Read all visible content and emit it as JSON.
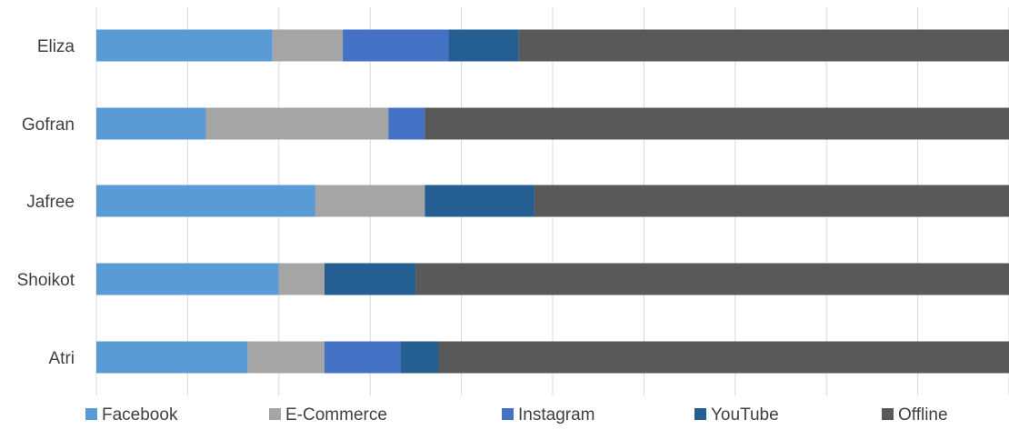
{
  "chart_data": {
    "type": "bar",
    "orientation": "horizontal",
    "stacked": "percent",
    "title": "",
    "xlabel": "",
    "ylabel": "",
    "xlim": [
      0,
      100
    ],
    "grid": true,
    "legend_position": "bottom",
    "categories": [
      "Eliza",
      "Gofran",
      "Jafree",
      "Shoikot",
      "Atri"
    ],
    "series": [
      {
        "name": "Facebook",
        "color": "#5b9bd5",
        "values": [
          19.3,
          12.0,
          24.0,
          20.0,
          16.6
        ]
      },
      {
        "name": "E-Commerce",
        "color": "#a5a5a5",
        "values": [
          7.7,
          20.0,
          12.0,
          5.0,
          8.4
        ]
      },
      {
        "name": "Instagram",
        "color": "#4472c4",
        "values": [
          11.6,
          4.0,
          0,
          0,
          8.3
        ]
      },
      {
        "name": "YouTube",
        "color": "#255e91",
        "values": [
          7.7,
          0,
          12.0,
          10.0,
          4.2
        ]
      },
      {
        "name": "Offline",
        "color": "#595959",
        "values": [
          53.7,
          64.0,
          52.0,
          65.0,
          62.5
        ]
      }
    ]
  }
}
